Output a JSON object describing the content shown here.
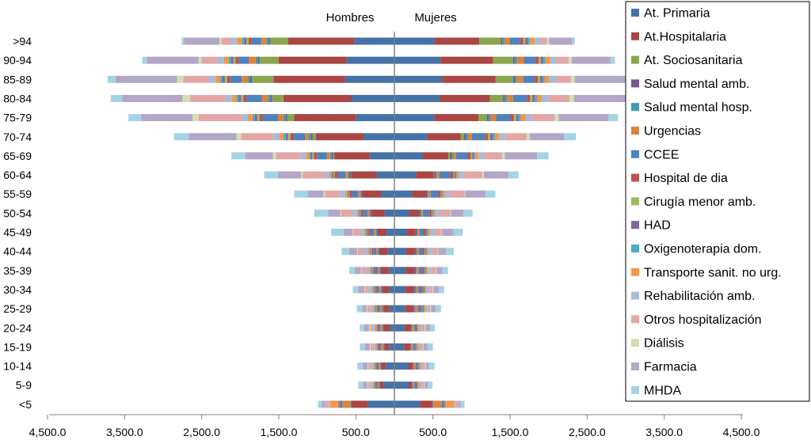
{
  "chart_data": {
    "type": "bar",
    "orientation": "horizontal",
    "stacked": true,
    "layout": "population-pyramid",
    "title": "",
    "xlabel": "",
    "ylabel": "",
    "side_labels": {
      "left": "Hombres",
      "right": "Mujeres"
    },
    "xlim": [
      -4500,
      4500
    ],
    "x_ticks": [
      -4500,
      -3500,
      -2500,
      -1500,
      -500,
      500,
      1500,
      2500,
      3500,
      4500
    ],
    "x_tick_labels": [
      "4,500.0",
      "3,500.0",
      "2,500.0",
      "1,500.0",
      "500.0",
      "500.0",
      "1,500.0",
      "2,500.0",
      "3,500.0",
      "4,500.0"
    ],
    "grid": false,
    "legend_position": "right",
    "categories": [
      ">94",
      "90-94",
      "85-89",
      "80-84",
      "75-79",
      "70-74",
      "65-69",
      "60-64",
      "55-59",
      "50-54",
      "45-49",
      "40-44",
      "35-39",
      "30-34",
      "25-29",
      "20-24",
      "15-19",
      "10-14",
      "5-9",
      "<5"
    ],
    "series": [
      {
        "name": "At. Primaria",
        "color": "#4572A7",
        "men": [
          520,
          620,
          640,
          560,
          500,
          400,
          320,
          230,
          170,
          125,
          100,
          85,
          75,
          70,
          65,
          60,
          65,
          110,
          140,
          350
        ],
        "women": [
          520,
          600,
          620,
          590,
          520,
          430,
          370,
          280,
          230,
          190,
          160,
          150,
          150,
          145,
          140,
          130,
          125,
          180,
          190,
          330
        ]
      },
      {
        "name": "At.Hospitalaria",
        "color": "#AA4643",
        "men": [
          860,
          880,
          930,
          880,
          800,
          620,
          460,
          330,
          240,
          170,
          110,
          95,
          85,
          80,
          75,
          75,
          60,
          50,
          40,
          200
        ],
        "women": [
          580,
          680,
          690,
          650,
          570,
          430,
          330,
          230,
          180,
          130,
          115,
          115,
          110,
          110,
          110,
          80,
          70,
          55,
          35,
          160
        ]
      },
      {
        "name": "At. Sociosanitaria",
        "color": "#89A54E",
        "men": [
          230,
          250,
          280,
          150,
          90,
          40,
          15,
          5,
          0,
          0,
          0,
          0,
          0,
          0,
          0,
          0,
          0,
          0,
          0,
          0
        ],
        "women": [
          280,
          260,
          230,
          170,
          110,
          45,
          20,
          5,
          0,
          0,
          0,
          0,
          0,
          0,
          0,
          0,
          0,
          0,
          0,
          0
        ]
      },
      {
        "name": "Salud mental amb.",
        "color": "#71588F",
        "men": [
          20,
          20,
          20,
          20,
          20,
          20,
          20,
          20,
          20,
          20,
          20,
          20,
          20,
          15,
          10,
          15,
          15,
          15,
          10,
          10
        ],
        "women": [
          20,
          20,
          20,
          20,
          20,
          20,
          20,
          20,
          20,
          20,
          20,
          20,
          20,
          20,
          15,
          15,
          15,
          10,
          10,
          10
        ]
      },
      {
        "name": "Salud mental hosp.",
        "color": "#4198AF",
        "men": [
          30,
          30,
          30,
          30,
          30,
          30,
          20,
          15,
          10,
          10,
          10,
          10,
          10,
          10,
          10,
          5,
          5,
          5,
          5,
          5
        ],
        "women": [
          30,
          30,
          30,
          30,
          30,
          30,
          20,
          15,
          10,
          10,
          10,
          10,
          10,
          10,
          10,
          5,
          5,
          5,
          5,
          5
        ]
      },
      {
        "name": "Urgencias",
        "color": "#DB843D",
        "men": [
          70,
          90,
          80,
          80,
          70,
          50,
          40,
          35,
          30,
          25,
          25,
          25,
          25,
          25,
          30,
          30,
          30,
          25,
          20,
          110
        ],
        "women": [
          70,
          90,
          80,
          80,
          70,
          50,
          40,
          35,
          30,
          25,
          25,
          25,
          25,
          25,
          30,
          30,
          30,
          25,
          20,
          110
        ]
      },
      {
        "name": "CCEE",
        "color": "#4F81BD",
        "men": [
          120,
          130,
          150,
          200,
          200,
          150,
          130,
          100,
          80,
          60,
          50,
          40,
          40,
          35,
          30,
          30,
          30,
          30,
          30,
          30
        ],
        "women": [
          130,
          150,
          150,
          180,
          190,
          170,
          150,
          140,
          100,
          80,
          60,
          50,
          50,
          40,
          40,
          30,
          30,
          30,
          30,
          30
        ]
      },
      {
        "name": "Hospital de dia",
        "color": "#C0504D",
        "men": [
          40,
          40,
          40,
          40,
          40,
          40,
          40,
          40,
          30,
          30,
          25,
          20,
          20,
          15,
          10,
          10,
          10,
          10,
          10,
          10
        ],
        "women": [
          40,
          40,
          40,
          40,
          40,
          40,
          40,
          40,
          30,
          30,
          25,
          20,
          20,
          15,
          10,
          10,
          10,
          10,
          10,
          10
        ]
      },
      {
        "name": "Cirugía menor amb.",
        "color": "#9BBB59",
        "men": [
          30,
          30,
          30,
          30,
          30,
          30,
          20,
          15,
          10,
          10,
          10,
          10,
          10,
          10,
          10,
          5,
          5,
          5,
          5,
          5
        ],
        "women": [
          30,
          30,
          30,
          30,
          30,
          30,
          20,
          15,
          10,
          10,
          10,
          10,
          10,
          10,
          10,
          5,
          5,
          5,
          5,
          5
        ]
      },
      {
        "name": "HAD",
        "color": "#8064A2",
        "men": [
          30,
          30,
          30,
          30,
          30,
          30,
          20,
          15,
          10,
          10,
          10,
          10,
          10,
          10,
          10,
          5,
          5,
          5,
          5,
          5
        ],
        "women": [
          30,
          30,
          30,
          30,
          30,
          30,
          20,
          15,
          10,
          10,
          10,
          10,
          10,
          10,
          10,
          5,
          5,
          5,
          5,
          5
        ]
      },
      {
        "name": "Oxigenoterapia dom.",
        "color": "#4BACC6",
        "men": [
          30,
          30,
          30,
          30,
          30,
          30,
          20,
          15,
          10,
          10,
          10,
          10,
          10,
          10,
          10,
          5,
          5,
          5,
          5,
          5
        ],
        "women": [
          30,
          30,
          30,
          30,
          30,
          30,
          20,
          15,
          10,
          10,
          10,
          10,
          10,
          10,
          10,
          5,
          5,
          5,
          5,
          5
        ]
      },
      {
        "name": "Transporte sanit. no urg.",
        "color": "#F79646",
        "men": [
          60,
          60,
          60,
          60,
          60,
          50,
          40,
          30,
          30,
          20,
          20,
          20,
          20,
          20,
          20,
          20,
          20,
          20,
          20,
          100
        ],
        "women": [
          60,
          60,
          60,
          60,
          60,
          50,
          40,
          30,
          30,
          20,
          20,
          20,
          20,
          20,
          20,
          20,
          20,
          20,
          20,
          100
        ]
      },
      {
        "name": "Rehabilitación amb.",
        "color": "#A9BBD9",
        "men": [
          80,
          90,
          90,
          90,
          80,
          80,
          70,
          60,
          60,
          60,
          60,
          50,
          40,
          40,
          30,
          30,
          30,
          30,
          30,
          30
        ],
        "women": [
          80,
          90,
          90,
          90,
          80,
          80,
          70,
          60,
          60,
          60,
          60,
          50,
          40,
          40,
          30,
          30,
          30,
          30,
          30,
          30
        ]
      },
      {
        "name": "Otros hospitalización",
        "color": "#E3A7A6",
        "men": [
          120,
          200,
          330,
          450,
          560,
          420,
          320,
          280,
          200,
          140,
          80,
          80,
          60,
          40,
          40,
          30,
          30,
          30,
          20,
          40
        ],
        "women": [
          80,
          150,
          190,
          270,
          300,
          280,
          240,
          240,
          190,
          130,
          80,
          70,
          60,
          40,
          30,
          30,
          20,
          20,
          20,
          40
        ]
      },
      {
        "name": "Diálisis",
        "color": "#D1E0B2",
        "men": [
          30,
          40,
          80,
          100,
          80,
          60,
          40,
          20,
          20,
          10,
          10,
          10,
          10,
          10,
          10,
          10,
          10,
          10,
          10,
          0
        ],
        "women": [
          30,
          40,
          50,
          60,
          50,
          40,
          30,
          20,
          10,
          10,
          10,
          10,
          10,
          10,
          10,
          10,
          10,
          10,
          10,
          0
        ]
      },
      {
        "name": "Farmacia",
        "color": "#B3A7C8",
        "men": [
          460,
          670,
          800,
          780,
          670,
          620,
          360,
          300,
          200,
          160,
          120,
          100,
          80,
          80,
          60,
          60,
          60,
          60,
          60,
          40
        ],
        "women": [
          300,
          500,
          650,
          700,
          650,
          450,
          420,
          320,
          260,
          160,
          150,
          100,
          80,
          70,
          60,
          60,
          50,
          40,
          40,
          20
        ]
      },
      {
        "name": "MHDA",
        "color": "#A5D3E6",
        "men": [
          30,
          60,
          100,
          150,
          160,
          190,
          180,
          180,
          180,
          180,
          160,
          100,
          70,
          70,
          70,
          60,
          70,
          70,
          60,
          50
        ],
        "women": [
          30,
          60,
          60,
          100,
          120,
          150,
          150,
          130,
          130,
          120,
          120,
          100,
          70,
          70,
          70,
          60,
          70,
          70,
          60,
          50
        ]
      }
    ]
  }
}
